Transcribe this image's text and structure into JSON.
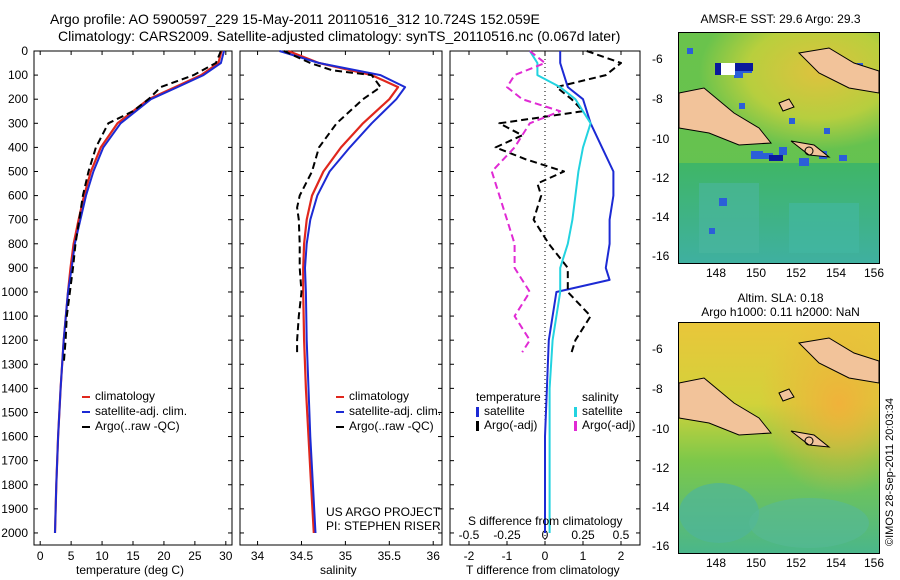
{
  "header": {
    "line1": "Argo profile: AO 5900597_229 15-May-2011 20110516_312 10.724S 152.059E",
    "line2": "Climatology: CARS2009. Satellite-adjusted climatology: synTS_20110516.nc (0.067d later)"
  },
  "colors": {
    "climatology": "#e0271d",
    "satellite": "#1c2ad4",
    "argo": "#000000",
    "sal_satellite": "#22d3e0",
    "sal_argo": "#e02ad4"
  },
  "depth_axis": {
    "ylim": [
      0,
      2050
    ],
    "ticks": [
      0,
      100,
      200,
      300,
      400,
      500,
      600,
      700,
      800,
      900,
      1000,
      1100,
      1200,
      1300,
      1400,
      1500,
      1600,
      1700,
      1800,
      1900,
      2000
    ]
  },
  "chart_data": [
    {
      "id": "temperature",
      "type": "line",
      "xlabel": "temperature (deg C)",
      "xlim": [
        -1,
        31
      ],
      "xticks": [
        0,
        5,
        10,
        15,
        20,
        25,
        30
      ],
      "legend": [
        "climatology",
        "satellite-adj. clim.",
        "Argo(..raw -QC)"
      ],
      "series": [
        {
          "name": "climatology",
          "depth": [
            0,
            50,
            100,
            150,
            200,
            300,
            400,
            500,
            600,
            700,
            800,
            900,
            1000,
            1200,
            1400,
            1600,
            1800,
            2000
          ],
          "values": [
            29.3,
            28.8,
            26.0,
            21.8,
            17.5,
            12.5,
            9.8,
            8.2,
            7.1,
            6.2,
            5.4,
            4.9,
            4.5,
            3.8,
            3.3,
            2.9,
            2.6,
            2.4
          ]
        },
        {
          "name": "satellite-adj. clim.",
          "depth": [
            0,
            50,
            100,
            150,
            200,
            300,
            400,
            500,
            600,
            700,
            800,
            900,
            1000,
            1200,
            1400,
            1600,
            1800,
            2000
          ],
          "values": [
            29.7,
            29.2,
            26.4,
            22.2,
            17.9,
            13.0,
            10.2,
            8.6,
            7.4,
            6.5,
            5.6,
            5.1,
            4.5,
            3.8,
            3.3,
            2.9,
            2.6,
            2.4
          ]
        },
        {
          "name": "Argo(..raw -QC)",
          "depth": [
            0,
            50,
            100,
            150,
            200,
            250,
            300,
            400,
            500,
            600,
            700,
            800,
            900,
            1000,
            1100,
            1200,
            1300
          ],
          "values": [
            29.2,
            28.4,
            24.8,
            19.5,
            17.5,
            15.0,
            11.0,
            9.0,
            7.8,
            6.9,
            6.3,
            5.7,
            5.3,
            4.8,
            4.3,
            4.1,
            3.8
          ]
        }
      ]
    },
    {
      "id": "salinity",
      "type": "line",
      "xlabel": "salinity",
      "xlim": [
        33.8,
        36.1
      ],
      "xticks": [
        34,
        34.5,
        35,
        35.5,
        36
      ],
      "xtick_labels": [
        "34",
        "34.5",
        "35",
        "35.5",
        "36"
      ],
      "legend": [
        "climatology",
        "satellite-adj. clim.",
        "Argo(..raw -QC)"
      ],
      "annotation": [
        "US ARGO PROJECT",
        "PI: STEPHEN RISER"
      ],
      "series": [
        {
          "name": "climatology",
          "depth": [
            0,
            50,
            100,
            150,
            200,
            300,
            400,
            500,
            600,
            700,
            800,
            900,
            1000,
            1200,
            1400,
            1600,
            1800,
            2000
          ],
          "values": [
            34.35,
            34.7,
            35.3,
            35.6,
            35.5,
            35.2,
            34.95,
            34.75,
            34.62,
            34.56,
            34.53,
            34.52,
            34.52,
            34.53,
            34.55,
            34.58,
            34.61,
            34.64
          ]
        },
        {
          "name": "satellite-adj. clim.",
          "depth": [
            0,
            50,
            100,
            150,
            200,
            300,
            400,
            500,
            600,
            700,
            800,
            900,
            1000,
            1200,
            1400,
            1600,
            1800,
            2000
          ],
          "values": [
            34.25,
            34.7,
            35.4,
            35.68,
            35.58,
            35.3,
            35.05,
            34.82,
            34.68,
            34.6,
            34.56,
            34.54,
            34.55,
            34.56,
            34.58,
            34.6,
            34.63,
            34.66
          ]
        },
        {
          "name": "Argo(..raw -QC)",
          "depth": [
            0,
            50,
            80,
            100,
            150,
            200,
            300,
            400,
            500,
            600,
            650,
            700,
            800,
            900,
            1000,
            1100,
            1200,
            1250
          ],
          "values": [
            34.3,
            34.6,
            34.85,
            35.3,
            35.4,
            35.2,
            34.9,
            34.7,
            34.62,
            34.48,
            34.45,
            34.47,
            34.48,
            34.48,
            34.5,
            34.47,
            34.45,
            34.45
          ]
        }
      ]
    },
    {
      "id": "differences",
      "type": "line",
      "xlabel": "T difference from climatology",
      "xlabel_top": "S difference from climatology",
      "xlim": [
        -2.5,
        2.5
      ],
      "xticks": [
        -2,
        -1,
        0,
        1,
        2
      ],
      "s_ticks": [
        -0.5,
        -0.25,
        0,
        0.25,
        0.5
      ],
      "s_tick_labels": [
        "-0.5",
        "-0.25",
        "0",
        "0.25",
        "0.5"
      ],
      "legend_temperature": [
        "temperature",
        "satellite",
        "Argo(-adj)"
      ],
      "legend_salinity": [
        "salinity",
        "satellite",
        "Argo(-adj)"
      ],
      "series": [
        {
          "name": "temperature satellite",
          "depth": [
            0,
            50,
            100,
            150,
            200,
            300,
            400,
            500,
            600,
            700,
            800,
            900,
            950,
            1000,
            1100,
            1200,
            1400,
            1600,
            1800,
            2000
          ],
          "values": [
            0.4,
            0.4,
            0.5,
            0.6,
            1.0,
            1.2,
            1.5,
            1.8,
            1.8,
            1.7,
            1.7,
            1.6,
            1.7,
            0.3,
            0.2,
            0.1,
            0.05,
            0.0,
            0.0,
            0.0
          ]
        },
        {
          "name": "temperature Argo(-adj)",
          "depth": [
            0,
            50,
            100,
            150,
            200,
            250,
            300,
            350,
            400,
            450,
            500,
            550,
            600,
            700,
            800,
            900,
            1000,
            1100,
            1200,
            1250
          ],
          "values": [
            1.1,
            2.0,
            1.6,
            0.3,
            0.7,
            1.0,
            -1.2,
            -0.6,
            -1.3,
            -0.5,
            0.5,
            -0.2,
            -0.1,
            -0.3,
            0.1,
            0.6,
            0.6,
            1.2,
            0.8,
            0.7
          ]
        },
        {
          "name": "salinity satellite",
          "depth": [
            0,
            50,
            100,
            150,
            200,
            300,
            400,
            500,
            600,
            700,
            800,
            900,
            1000,
            1200,
            1400,
            1600,
            1800,
            2000
          ],
          "values": [
            -0.1,
            -0.05,
            -0.05,
            0.1,
            0.2,
            0.3,
            0.25,
            0.22,
            0.2,
            0.18,
            0.15,
            0.1,
            0.1,
            0.05,
            0.03,
            0.03,
            0.03,
            0.03
          ]
        },
        {
          "name": "salinity Argo(-adj)",
          "depth": [
            0,
            50,
            100,
            150,
            200,
            250,
            300,
            400,
            500,
            600,
            700,
            800,
            900,
            1000,
            1100,
            1200,
            1250
          ],
          "values": [
            -0.1,
            0.0,
            -0.2,
            -0.25,
            -0.15,
            0.1,
            -0.1,
            -0.2,
            -0.35,
            -0.3,
            -0.25,
            -0.2,
            -0.2,
            -0.1,
            -0.2,
            -0.1,
            -0.15
          ]
        }
      ]
    }
  ],
  "maps": {
    "sst": {
      "title": "AMSR-E SST: 29.6 Argo: 29.3",
      "xticks": [
        "148",
        "150",
        "152",
        "154",
        "156"
      ],
      "yticks": [
        "-6",
        "-8",
        "-10",
        "-12",
        "-14",
        "-16"
      ]
    },
    "sla": {
      "title1": "Altim. SLA: 0.18",
      "title2": "Argo h1000: 0.11 h2000: NaN",
      "xticks": [
        "148",
        "150",
        "152",
        "154",
        "156"
      ],
      "yticks": [
        "-6",
        "-8",
        "-10",
        "-12",
        "-14",
        "-16"
      ]
    }
  },
  "footer": {
    "credit": "©IMOS 28-Sep-2011 20:03:34"
  }
}
